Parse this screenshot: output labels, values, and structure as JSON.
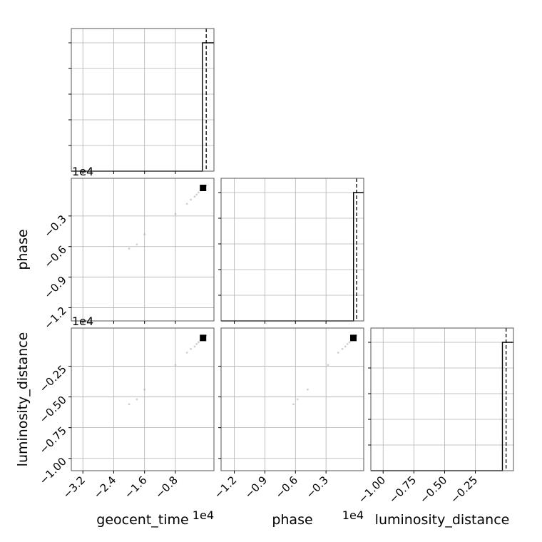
{
  "chart_data": {
    "type": "scatter",
    "subtype": "corner-plot",
    "grid": true,
    "parameters": [
      "geocent_time",
      "phase",
      "luminosity_distance"
    ],
    "axis_labels": {
      "x": [
        "geocent_time",
        "phase",
        "luminosity_distance"
      ],
      "y": [
        "",
        "phase",
        "luminosity_distance"
      ]
    },
    "offset_texts": {
      "row0_x": "1e4",
      "row1_x": "1e4",
      "bottom_x1": "1e4",
      "bottom_x2": "1e4"
    },
    "axes": {
      "geocent_time": {
        "range": [
          -3.5,
          0.2
        ],
        "ticks": [
          -3.2,
          -2.4,
          -1.6,
          -0.8
        ],
        "tick_labels": [
          "−3.2",
          "−2.4",
          "−1.6",
          "−0.8"
        ],
        "scale_exponent": 4
      },
      "phase": {
        "range": [
          -1.33,
          0.07
        ],
        "ticks": [
          -1.2,
          -0.9,
          -0.6,
          -0.3
        ],
        "tick_labels": [
          "−1.2",
          "−0.9",
          "−0.6",
          "−0.3"
        ],
        "scale_exponent": 4
      },
      "luminosity_distance": {
        "range": [
          -1.1,
          0.06
        ],
        "ticks": [
          -1.0,
          -0.75,
          -0.5,
          -0.25
        ],
        "tick_labels": [
          "−1.00",
          "−0.75",
          "−0.50",
          "−0.25"
        ],
        "scale_exponent": 4
      }
    },
    "samples": {
      "geocent_time": [
        0.0,
        -0.05,
        -0.1,
        -0.15,
        -0.2,
        -0.25,
        -0.3,
        -0.4,
        -0.5,
        -0.8,
        -1.6,
        -1.8,
        -2.0
      ],
      "phase": [
        0.0,
        -0.015,
        -0.03,
        -0.05,
        -0.07,
        -0.09,
        -0.11,
        -0.14,
        -0.18,
        -0.28,
        -0.48,
        -0.58,
        -0.62
      ],
      "luminosity_distance": [
        0.0,
        -0.012,
        -0.025,
        -0.04,
        -0.055,
        -0.07,
        -0.09,
        -0.11,
        -0.14,
        -0.24,
        -0.44,
        -0.52,
        -0.56
      ]
    },
    "histograms": [
      {
        "parameter": "geocent_time",
        "step_edge": -0.1,
        "level": 0.9,
        "dashed_x": 0.0
      },
      {
        "parameter": "phase",
        "step_edge": -0.03,
        "level": 0.9,
        "dashed_x": 0.0
      },
      {
        "parameter": "luminosity_distance",
        "step_edge": -0.03,
        "level": 0.9,
        "dashed_x": 0.0
      }
    ]
  }
}
